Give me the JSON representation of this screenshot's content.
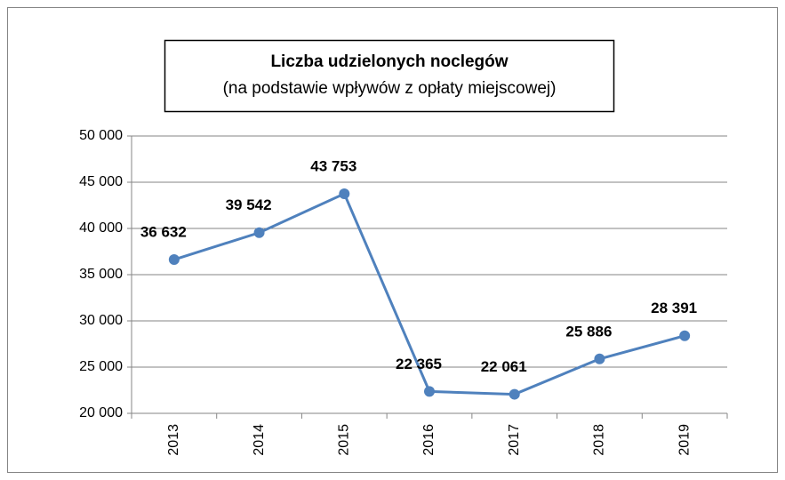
{
  "chart_data": {
    "type": "line",
    "title": "Liczba udzielonych noclegów",
    "subtitle": "(na podstawie wpływów z opłaty miejscowej)",
    "categories": [
      "2013",
      "2014",
      "2015",
      "2016",
      "2017",
      "2018",
      "2019"
    ],
    "series": [
      {
        "name": "Liczba udzielonych noclegów",
        "color": "#4f81bd",
        "values": [
          36632,
          39542,
          43753,
          22365,
          22061,
          25886,
          28391
        ],
        "value_labels": [
          "36 632",
          "39 542",
          "43 753",
          "22 365",
          "22 061",
          "25 886",
          "28 391"
        ]
      }
    ],
    "ylim": [
      20000,
      50000
    ],
    "yticks": [
      {
        "value": 20000,
        "label": "20 000"
      },
      {
        "value": 25000,
        "label": "25 000"
      },
      {
        "value": 30000,
        "label": "30 000"
      },
      {
        "value": 35000,
        "label": "35 000"
      },
      {
        "value": 40000,
        "label": "40 000"
      },
      {
        "value": 45000,
        "label": "45 000"
      },
      {
        "value": 50000,
        "label": "50 000"
      }
    ],
    "grid": true
  }
}
